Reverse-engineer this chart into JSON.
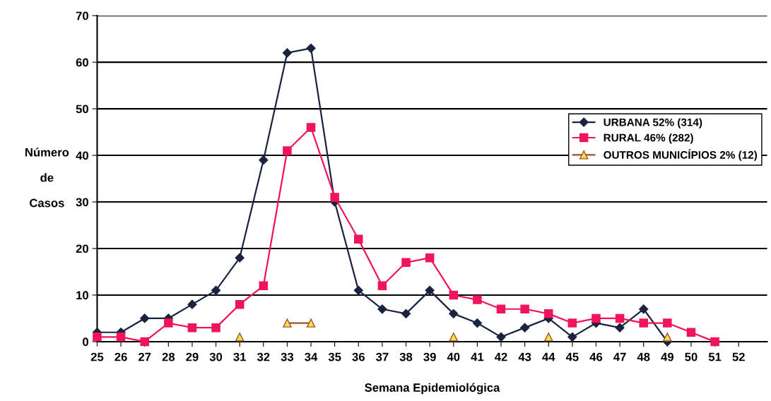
{
  "chart_data": {
    "type": "line",
    "xlabel": "Semana Epidemiológica",
    "ylabel": "Número\n\nde\n\nCasos",
    "x": [
      25,
      26,
      27,
      28,
      29,
      30,
      31,
      32,
      33,
      34,
      35,
      36,
      37,
      38,
      39,
      40,
      41,
      42,
      43,
      44,
      45,
      46,
      47,
      48,
      49,
      50,
      51
    ],
    "xlim": [
      25,
      53.2
    ],
    "xticks": [
      25,
      26,
      27,
      28,
      29,
      30,
      31,
      32,
      33,
      34,
      35,
      36,
      37,
      38,
      39,
      40,
      41,
      42,
      43,
      44,
      45,
      46,
      47,
      48,
      49,
      50,
      51,
      52
    ],
    "ylim": [
      0,
      70
    ],
    "yticks": [
      0,
      10,
      20,
      30,
      40,
      50,
      60,
      70
    ],
    "grid": "y",
    "legend": "right",
    "series": [
      {
        "name": "URBANA 52% (314)",
        "color": "#1a2340",
        "marker": "diamond",
        "values": [
          2,
          2,
          5,
          5,
          8,
          11,
          18,
          39,
          62,
          63,
          30,
          11,
          7,
          6,
          11,
          6,
          4,
          1,
          3,
          5,
          1,
          4,
          3,
          7,
          0,
          null,
          null
        ]
      },
      {
        "name": "RURAL 46% (282)",
        "color": "#f0145a",
        "marker": "square",
        "values": [
          1,
          1,
          0,
          4,
          3,
          3,
          8,
          12,
          41,
          46,
          31,
          22,
          12,
          17,
          18,
          10,
          9,
          7,
          7,
          6,
          4,
          5,
          5,
          4,
          4,
          2,
          0
        ]
      },
      {
        "name": "OUTROS MUNICÍPIOS 2% (12)",
        "color": "#a0522d",
        "marker": "triangle",
        "values": [
          null,
          null,
          null,
          null,
          null,
          null,
          1,
          null,
          4,
          4,
          null,
          null,
          null,
          null,
          null,
          1,
          null,
          null,
          null,
          1,
          null,
          null,
          null,
          null,
          1,
          null,
          null
        ]
      }
    ]
  }
}
